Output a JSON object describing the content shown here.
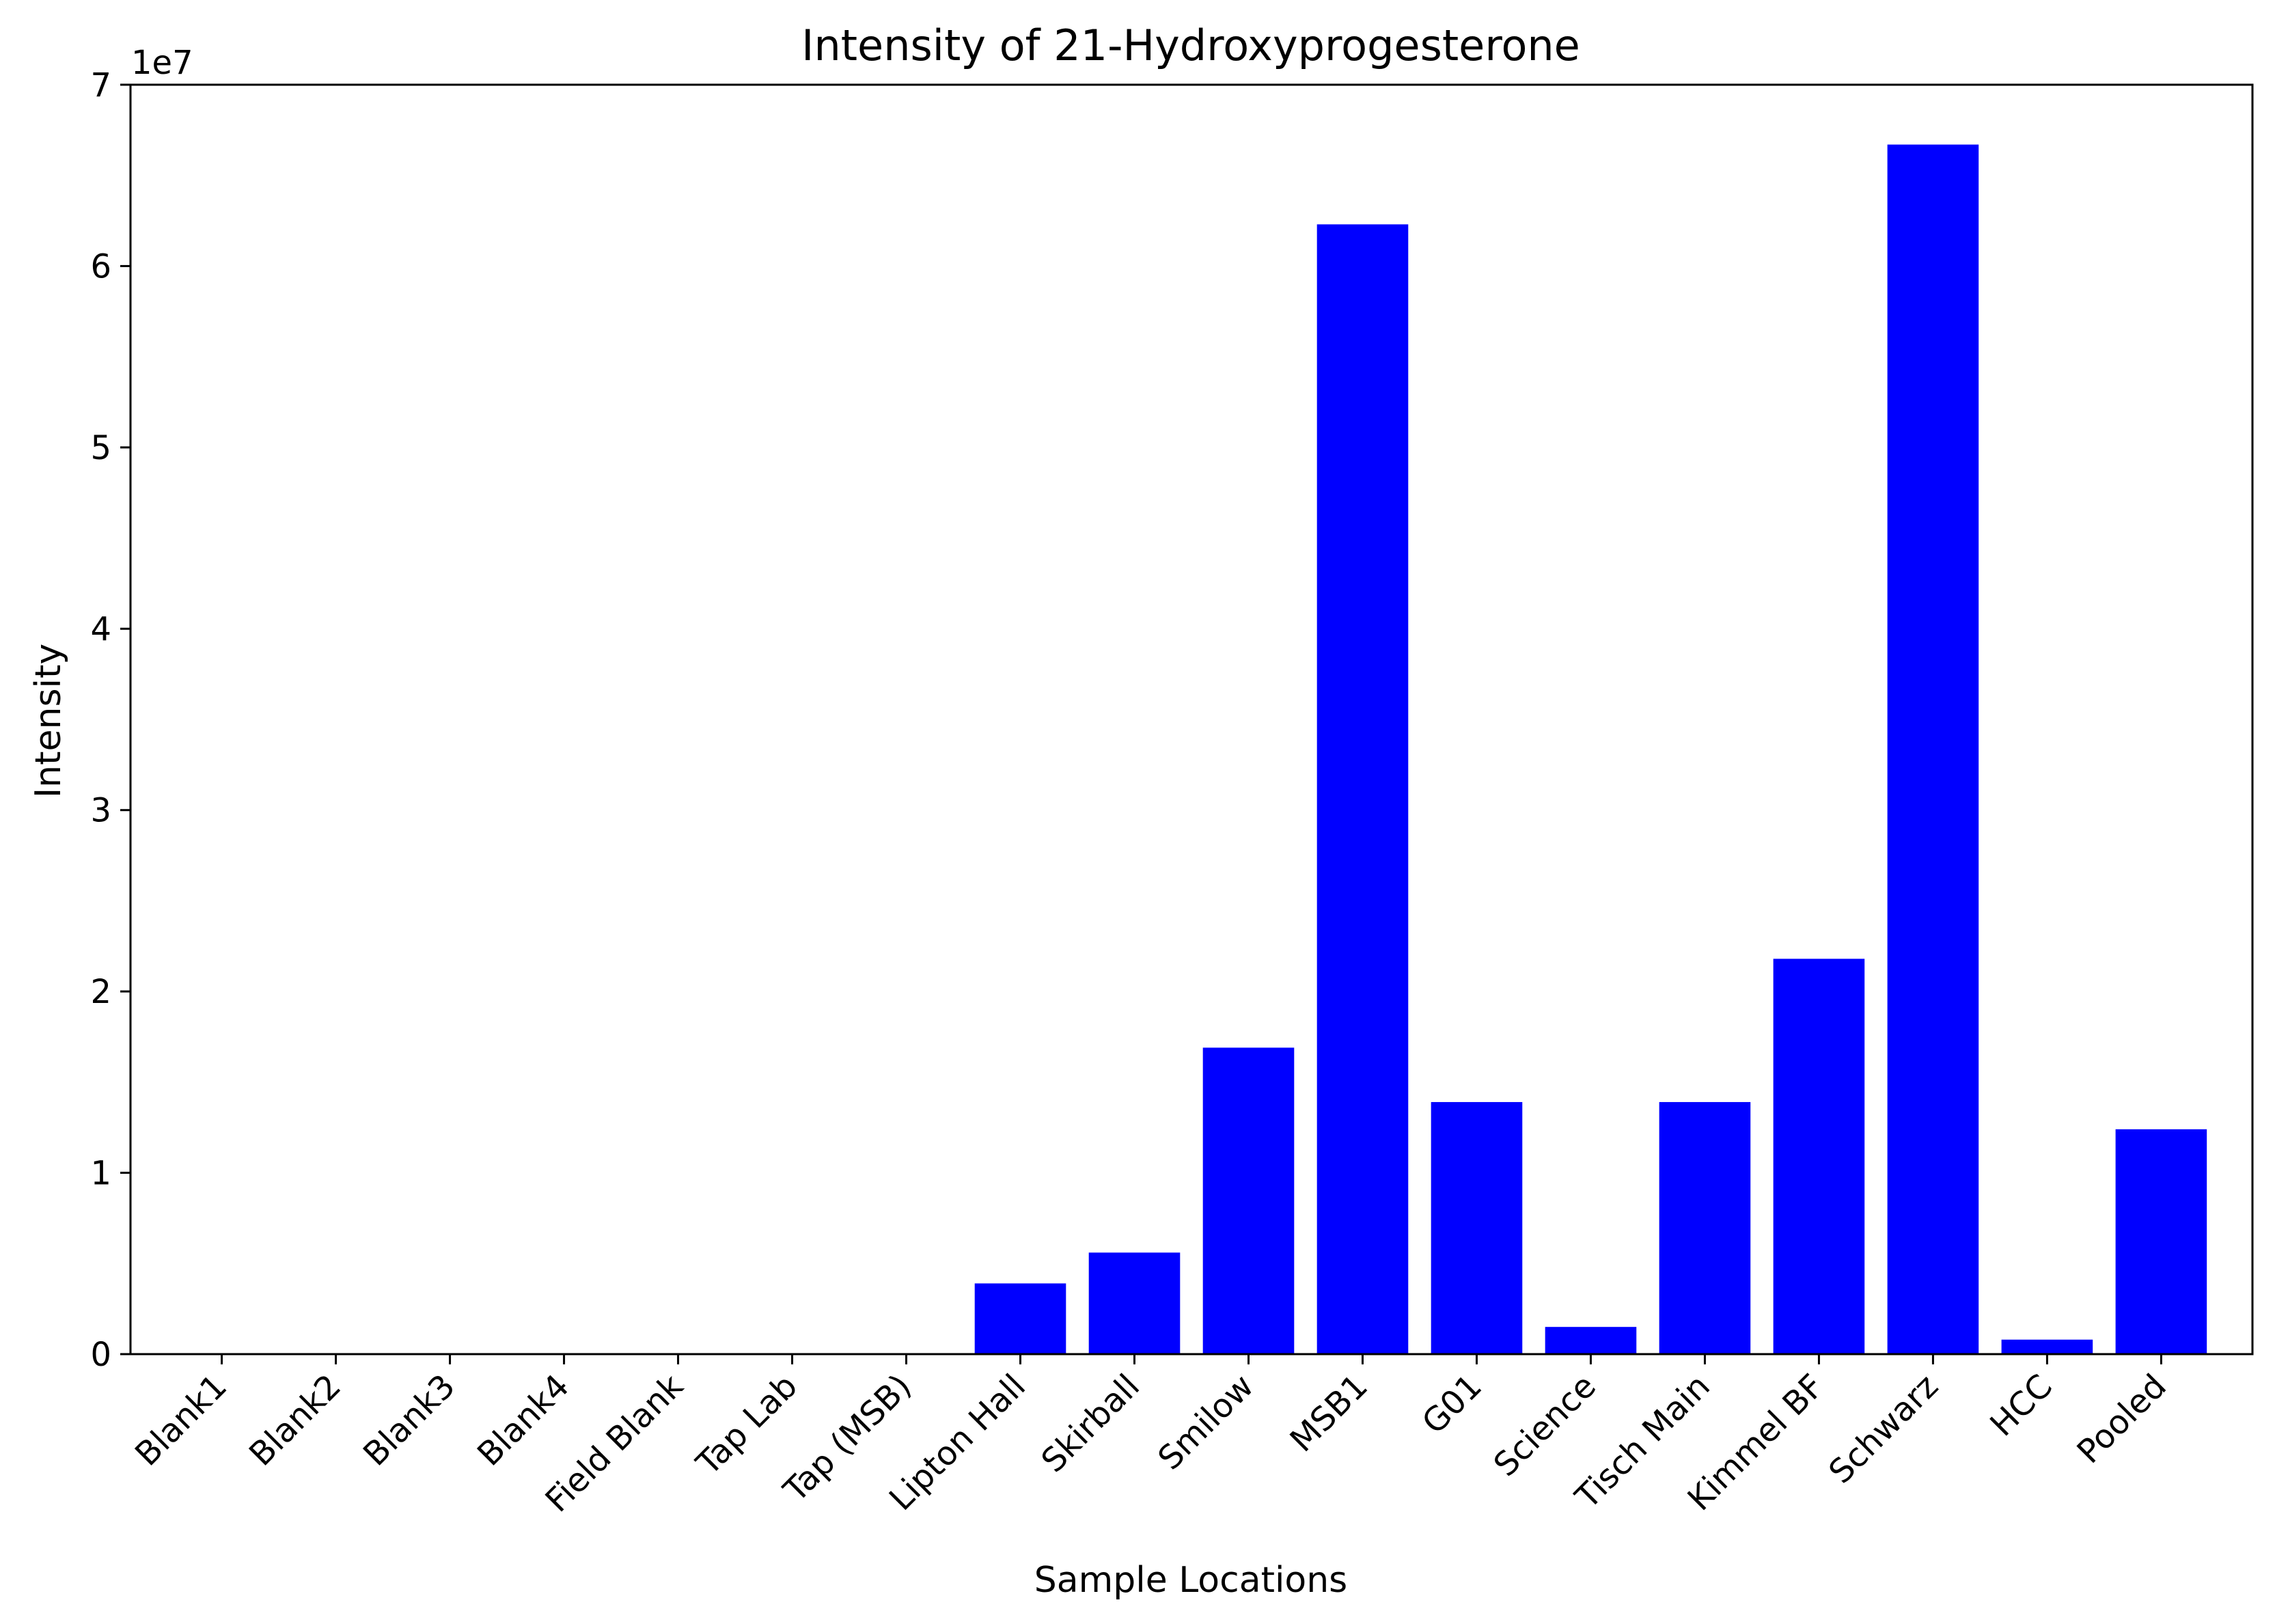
{
  "chart_data": {
    "type": "bar",
    "title": "Intensity of 21-Hydroxyprogesterone",
    "xlabel": "Sample Locations",
    "ylabel": "Intensity",
    "y_multiplier_label": "1e7",
    "ylim": [
      0,
      70000000
    ],
    "y_ticks": [
      0,
      10000000,
      20000000,
      30000000,
      40000000,
      50000000,
      60000000,
      70000000
    ],
    "y_tick_labels": [
      "0",
      "1",
      "2",
      "3",
      "4",
      "5",
      "6",
      "7"
    ],
    "categories": [
      "Blank1",
      "Blank2",
      "Blank3",
      "Blank4",
      "Field Blank",
      "Tap Lab",
      "Tap (MSB)",
      "Lipton Hall",
      "Skirball",
      "Smilow",
      "MSB1",
      "G01",
      "Science",
      "Tisch Main",
      "Kimmel BF",
      "Schwarz",
      "HCC",
      "Pooled"
    ],
    "values": [
      0,
      0,
      0,
      0,
      0,
      0,
      0,
      3900000,
      5600000,
      16900000,
      62300000,
      13900000,
      1500000,
      13900000,
      21800000,
      66700000,
      800000,
      12400000
    ],
    "bar_color": "#0000ff",
    "grid": false,
    "legend": "none"
  }
}
